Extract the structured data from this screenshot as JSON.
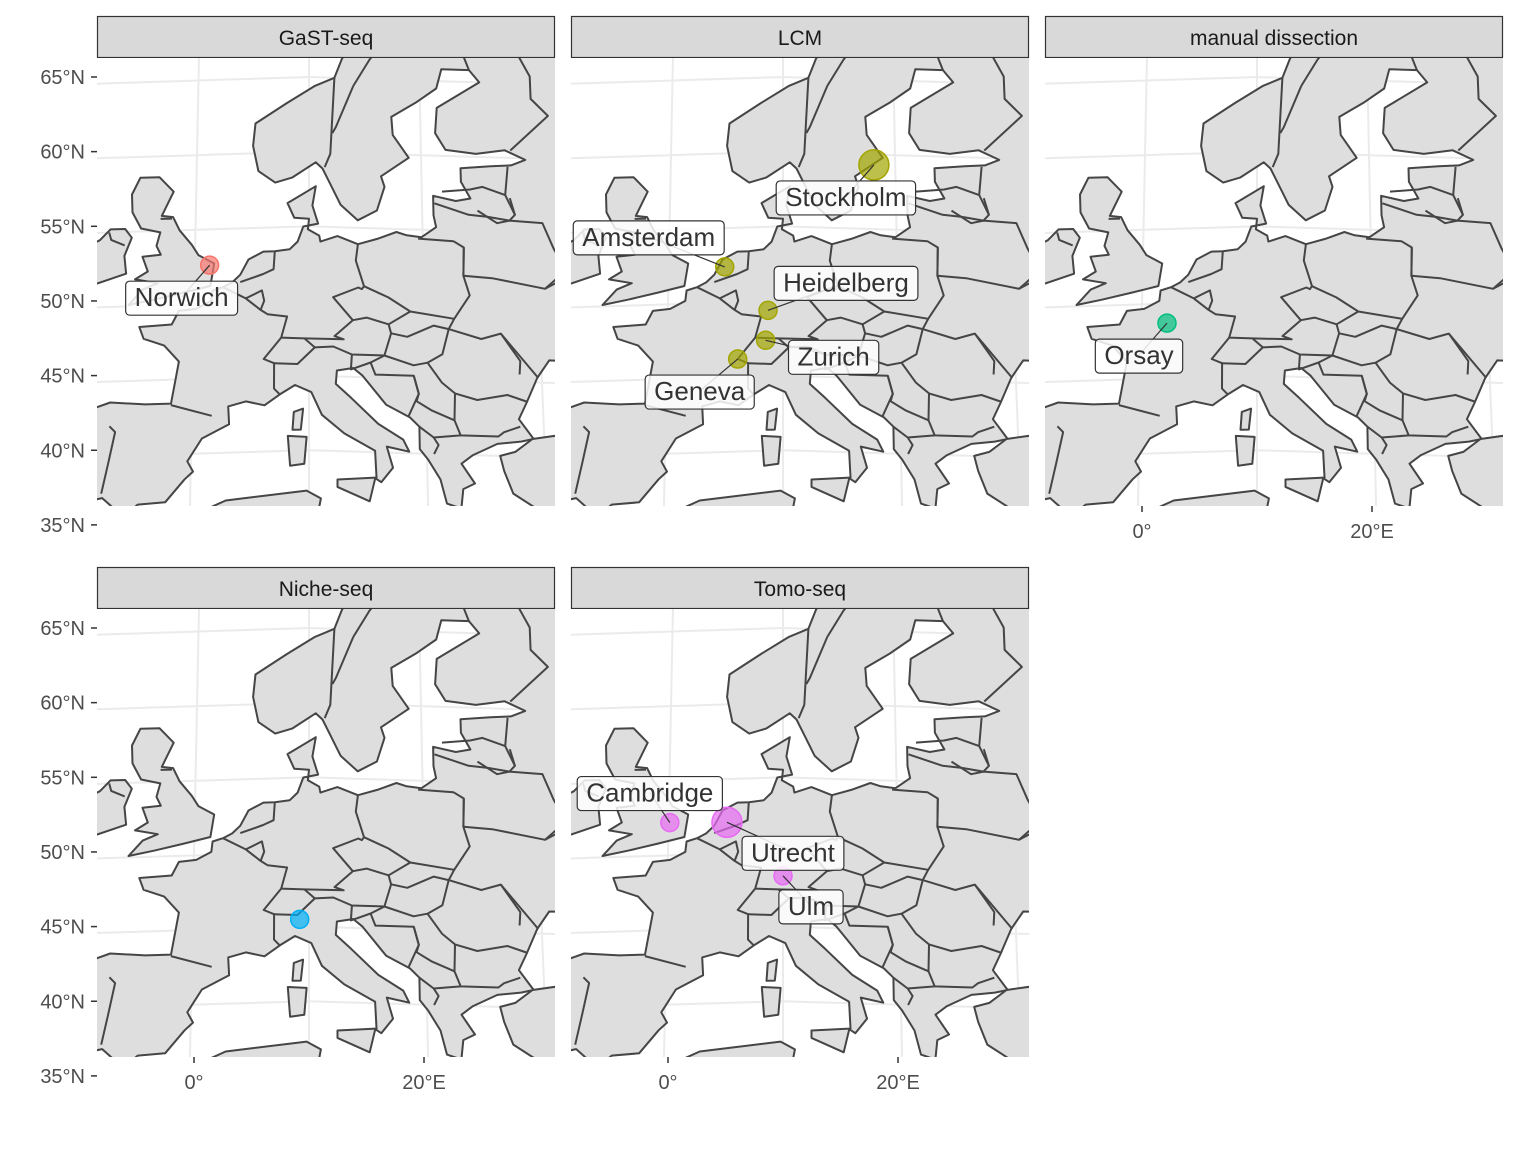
{
  "map": {
    "colors": {
      "land": "#dedede",
      "border": "#454545",
      "graticule": "#ebebeb",
      "strip_fill": "#d9d9d9",
      "strip_border": "#333333"
    },
    "lat_ticks": [
      "35°N",
      "40°N",
      "45°N",
      "50°N",
      "55°N",
      "60°N",
      "65°N"
    ],
    "lon_ticks": [
      "0°",
      "20°E"
    ],
    "panels": [
      {
        "title": "GaST-seq",
        "color": "#F8766D",
        "points": [
          {
            "city": "Norwich",
            "lon": 1.3,
            "lat": 52.6,
            "size": 1
          }
        ]
      },
      {
        "title": "LCM",
        "color": "#A3A500",
        "points": [
          {
            "city": "Stockholm",
            "lon": 18.1,
            "lat": 59.3,
            "size": 3
          },
          {
            "city": "Amsterdam",
            "lon": 4.9,
            "lat": 52.4,
            "size": 1
          },
          {
            "city": "Heidelberg",
            "lon": 8.7,
            "lat": 49.4,
            "size": 1
          },
          {
            "city": "Zurich",
            "lon": 8.5,
            "lat": 47.4,
            "size": 1
          },
          {
            "city": "Geneva",
            "lon": 6.1,
            "lat": 46.2,
            "size": 1
          }
        ]
      },
      {
        "title": "manual dissection",
        "color": "#00BF7D",
        "points": [
          {
            "city": "Orsay",
            "lon": 2.2,
            "lat": 48.7,
            "size": 1
          }
        ]
      },
      {
        "title": "Niche-seq",
        "color": "#00B0F6",
        "points": [
          {
            "city": "",
            "lon": 9.2,
            "lat": 45.5,
            "size": 1
          }
        ]
      },
      {
        "title": "Tomo-seq",
        "color": "#E76BF3",
        "points": [
          {
            "city": "Cambridge",
            "lon": 0.1,
            "lat": 52.2,
            "size": 1
          },
          {
            "city": "Utrecht",
            "lon": 5.1,
            "lat": 52.1,
            "size": 3
          },
          {
            "city": "Ulm",
            "lon": 10.0,
            "lat": 48.4,
            "size": 1
          }
        ]
      }
    ]
  }
}
